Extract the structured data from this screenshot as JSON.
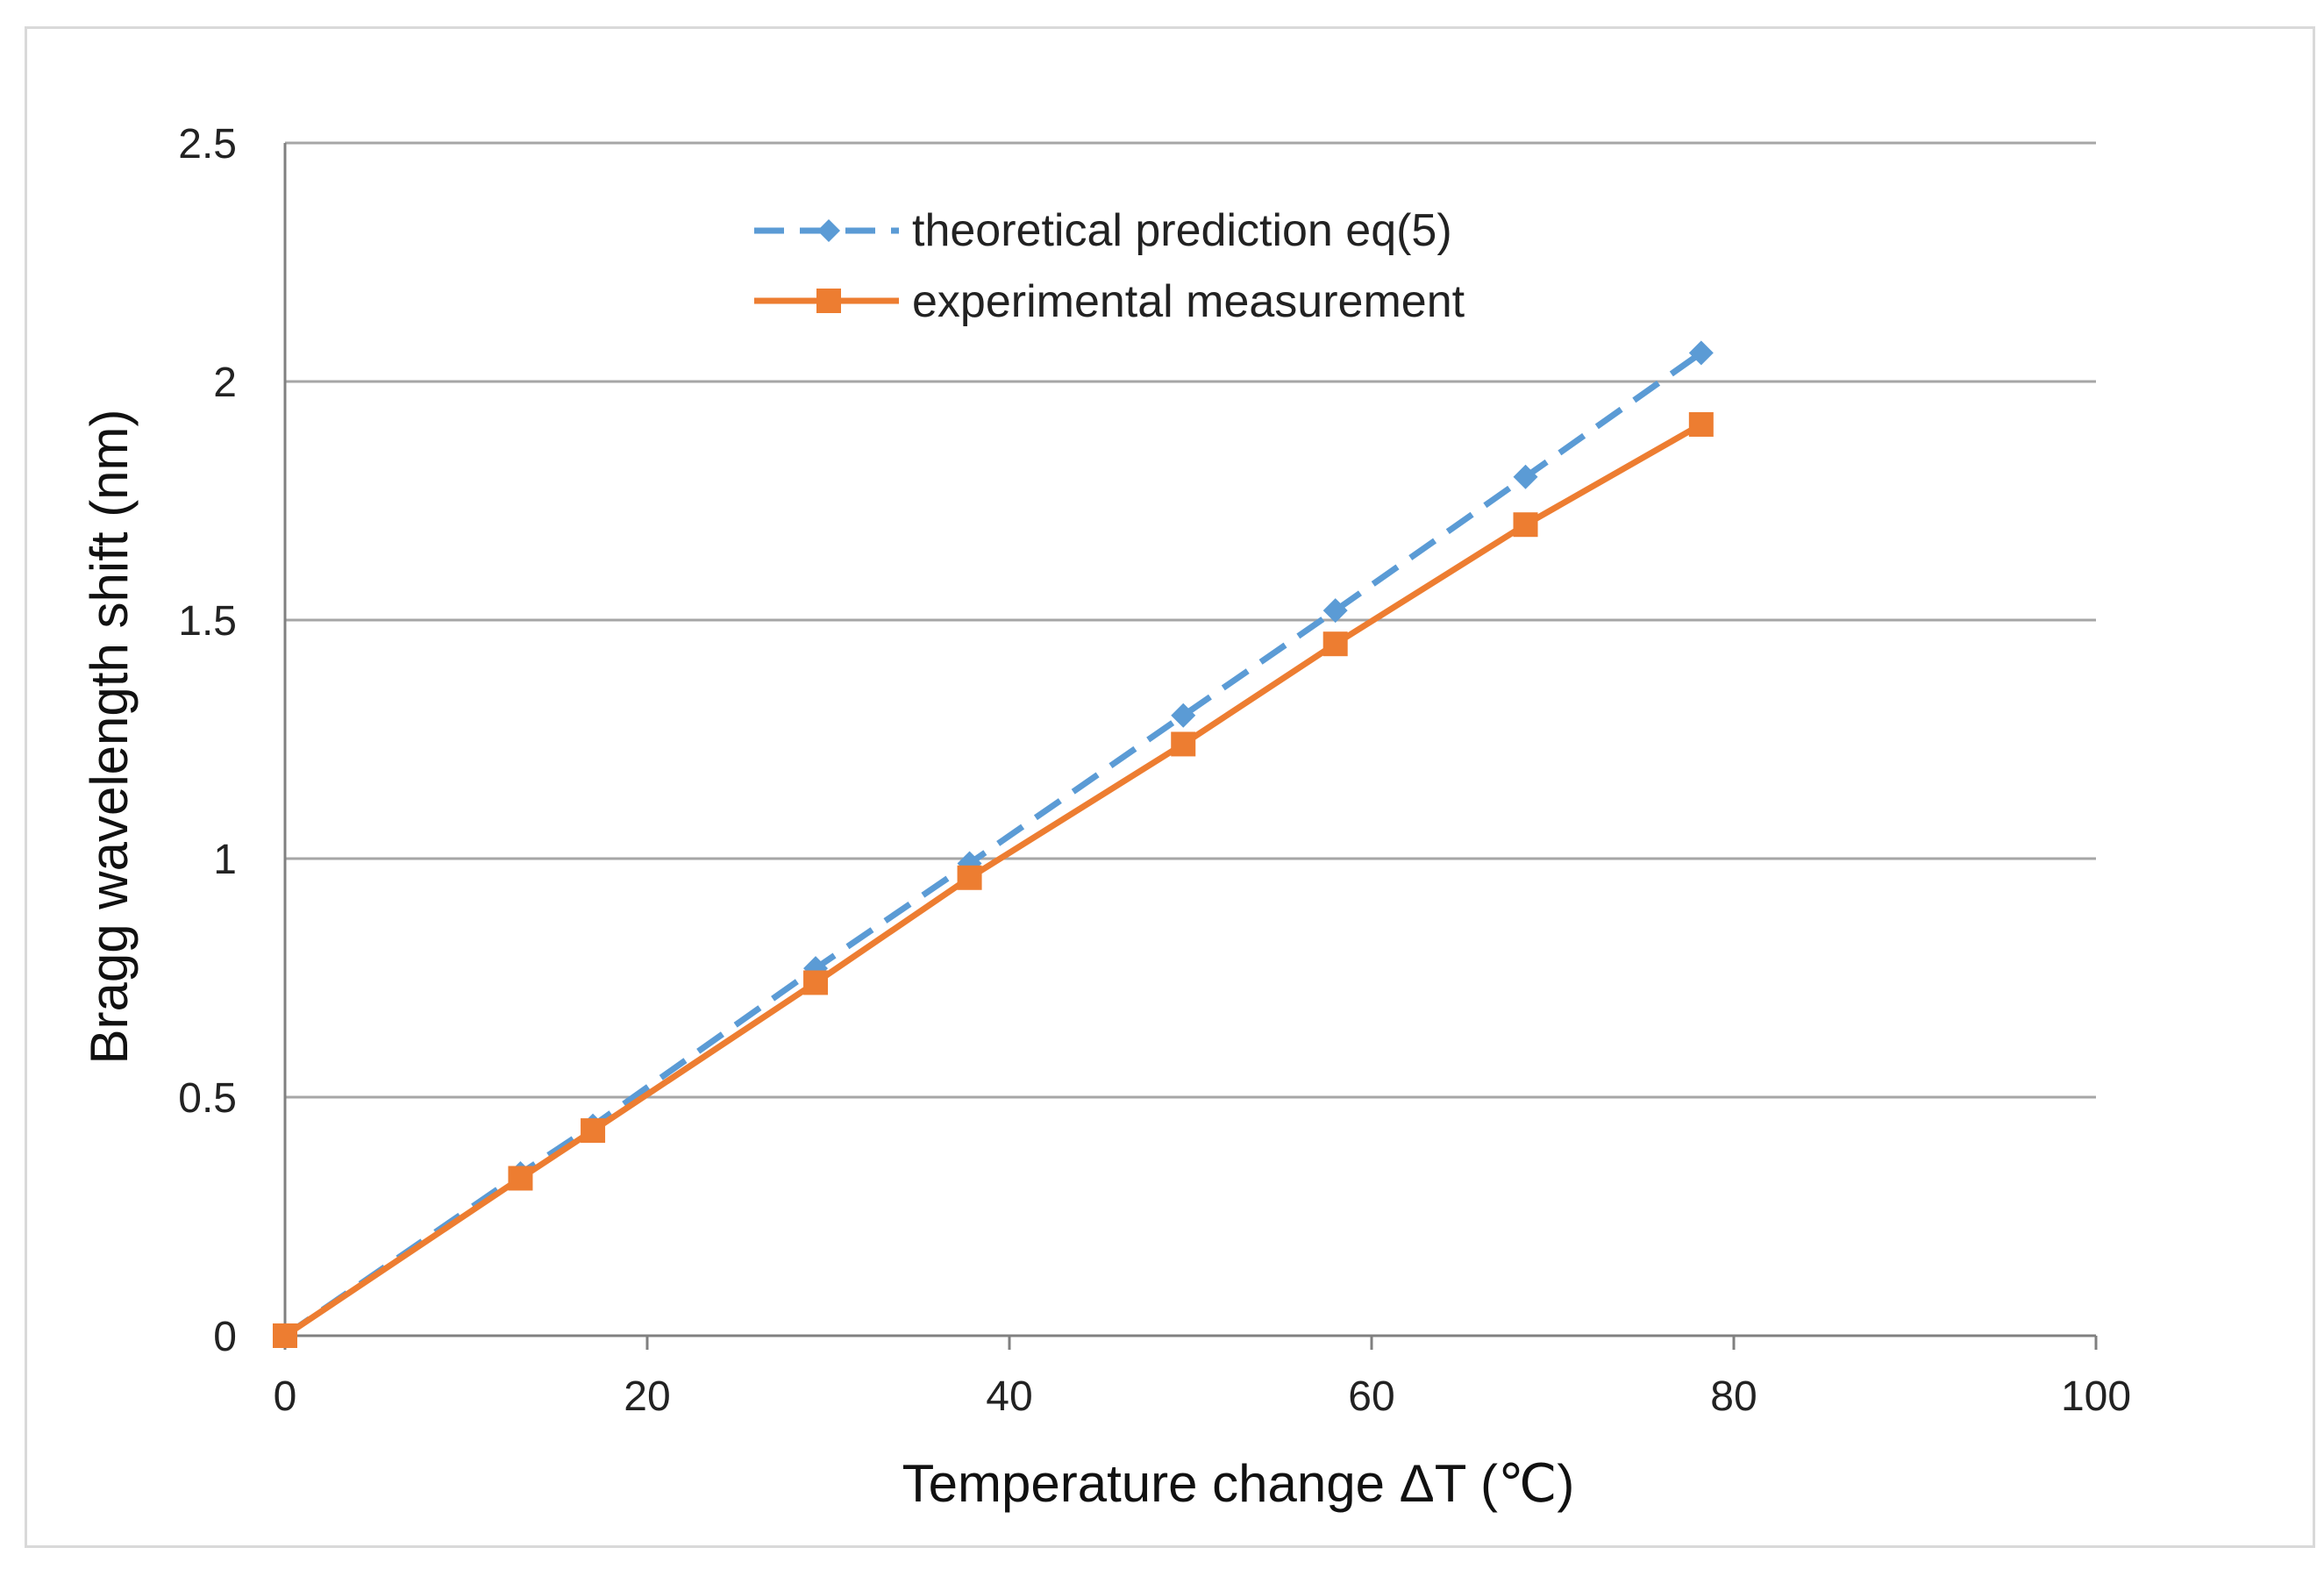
{
  "chart_data": {
    "type": "line",
    "title": "",
    "xlabel": "Temperature change ΔT (℃)",
    "ylabel": "Bragg wavelength shift (nm)",
    "xlim": [
      0,
      100
    ],
    "ylim": [
      0,
      2.5
    ],
    "xticks": [
      0,
      20,
      40,
      60,
      80,
      100
    ],
    "yticks": [
      0,
      0.5,
      1,
      1.5,
      2,
      2.5
    ],
    "xtick_labels": [
      "0",
      "20",
      "40",
      "60",
      "80",
      "100"
    ],
    "ytick_labels": [
      "0",
      "0.5",
      "1",
      "1.5",
      "2",
      "2.5"
    ],
    "grid": "horizontal",
    "legend_position": "top-center",
    "series": [
      {
        "name": "theoretical prediction eq(5)",
        "color": "#5b9bd5",
        "marker": "diamond",
        "line_style": "dashed",
        "x": [
          0,
          13,
          17,
          29.3,
          37.8,
          49.6,
          58,
          68.5,
          78.2
        ],
        "y": [
          0,
          0.34,
          0.44,
          0.77,
          0.99,
          1.3,
          1.52,
          1.8,
          2.06
        ]
      },
      {
        "name": "experimental measurement",
        "color": "#ed7d31",
        "marker": "square",
        "line_style": "solid",
        "x": [
          0,
          13,
          17,
          29.3,
          37.8,
          49.6,
          58,
          68.5,
          78.2
        ],
        "y": [
          0,
          0.33,
          0.43,
          0.74,
          0.96,
          1.24,
          1.45,
          1.7,
          1.91
        ]
      }
    ]
  }
}
